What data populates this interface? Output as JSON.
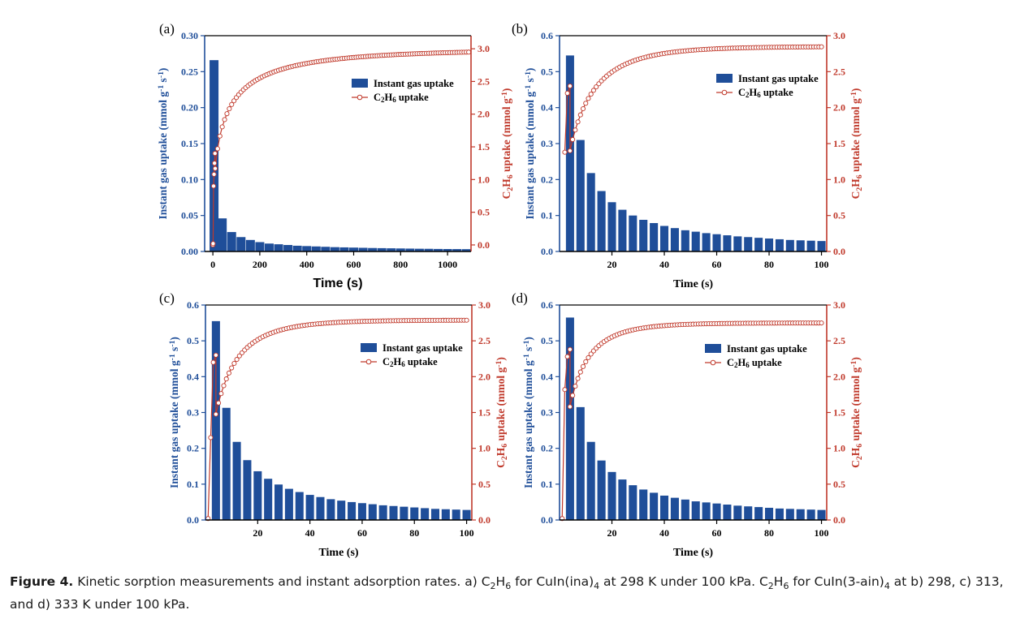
{
  "figure": {
    "caption_label": "Figure 4.",
    "caption_html": "Kinetic sorption measurements and instant adsorption rates. a) C<sub>2</sub>H<sub>6</sub> for CuIn(ina)<sub>4</sub> at 298 K under 100 kPa. C<sub>2</sub>H<sub>6</sub> for CuIn(3-ain)<sub>4</sub> at b) 298, c) 313, and d) 333 K under 100 kPa."
  },
  "colors": {
    "bar": "#1f4e99",
    "line": "#c0392b",
    "left_axis": "#1f4e99",
    "right_axis": "#c0392b"
  },
  "chart_data": [
    {
      "panel_label": "(a)",
      "type": "bar",
      "xlabel": "Time (s)",
      "ylabel_left": "Instant gas uptake (mmol g⁻¹ s⁻¹)",
      "ylabel_right": "C₂H₆ uptake (mmol g⁻¹)",
      "xlim": [
        -35,
        1100
      ],
      "xticks": [
        0,
        200,
        400,
        600,
        800,
        1000
      ],
      "ylim_left": [
        0,
        0.3
      ],
      "yticks_left": [
        "0.00",
        "0.05",
        "0.10",
        "0.15",
        "0.20",
        "0.25",
        "0.30"
      ],
      "ylim_right": [
        -0.1,
        3.2
      ],
      "yticks_right": [
        "0.0",
        "0.5",
        "1.0",
        "1.5",
        "2.0",
        "2.5",
        "3.0"
      ],
      "legend": [
        "Instant gas uptake",
        "C₂H₆ uptake"
      ],
      "legend_position": "top-right",
      "series": [
        {
          "name": "Instant gas uptake",
          "kind": "bar",
          "x": [
            5,
            40,
            80,
            120,
            160,
            200,
            240,
            280,
            320,
            360,
            400,
            440,
            480,
            520,
            560,
            600,
            640,
            680,
            720,
            760,
            800,
            840,
            880,
            920,
            960,
            1000,
            1040,
            1080
          ],
          "values": [
            0.266,
            0.046,
            0.027,
            0.02,
            0.016,
            0.013,
            0.011,
            0.01,
            0.009,
            0.008,
            0.0075,
            0.007,
            0.0065,
            0.006,
            0.0057,
            0.0054,
            0.0051,
            0.0048,
            0.0046,
            0.0044,
            0.0042,
            0.004,
            0.0038,
            0.0037,
            0.0035,
            0.0034,
            0.0033,
            0.0032
          ]
        },
        {
          "name": "C₂H₆ uptake",
          "kind": "line",
          "model": {
            "t_start": 0,
            "t_end": 1090,
            "step": 10,
            "y_max": 3.0,
            "tau": 48,
            "beta": 0.45
          },
          "start_points": [
            [
              1,
              0.02
            ],
            [
              3,
              0.9
            ],
            [
              5,
              1.08
            ],
            [
              7,
              1.25
            ],
            [
              9,
              1.4
            ]
          ]
        }
      ]
    },
    {
      "panel_label": "(b)",
      "type": "bar",
      "xlabel": "Time (s)",
      "ylabel_left": "Instant gas uptake (mmol g⁻¹ s⁻¹)",
      "ylabel_right": "C₂H₆ uptake (mmol g⁻¹)",
      "xlim": [
        0,
        102
      ],
      "xticks": [
        20,
        40,
        60,
        80,
        100
      ],
      "ylim_left": [
        0,
        0.6
      ],
      "yticks_left": [
        "0.0",
        "0.1",
        "0.2",
        "0.3",
        "0.4",
        "0.5",
        "0.6"
      ],
      "ylim_right": [
        0,
        3.0
      ],
      "yticks_right": [
        "0.0",
        "0.5",
        "1.0",
        "1.5",
        "2.0",
        "2.5",
        "3.0"
      ],
      "legend": [
        "Instant gas uptake",
        "C₂H₆ uptake"
      ],
      "legend_position": "top-right",
      "series": [
        {
          "name": "Instant gas uptake",
          "kind": "bar",
          "x": [
            4,
            8,
            12,
            16,
            20,
            24,
            28,
            32,
            36,
            40,
            44,
            48,
            52,
            56,
            60,
            64,
            68,
            72,
            76,
            80,
            84,
            88,
            92,
            96,
            100
          ],
          "values": [
            0.545,
            0.31,
            0.218,
            0.168,
            0.137,
            0.116,
            0.1,
            0.088,
            0.079,
            0.071,
            0.065,
            0.059,
            0.055,
            0.051,
            0.048,
            0.045,
            0.042,
            0.04,
            0.038,
            0.036,
            0.034,
            0.032,
            0.031,
            0.03,
            0.029
          ]
        },
        {
          "name": "C₂H₆ uptake",
          "kind": "line",
          "model": {
            "t_start": 4,
            "t_end": 100,
            "step": 1,
            "y_max": 2.85,
            "tau": 7,
            "beta": 0.7
          },
          "start_points": [
            [
              2,
              1.38
            ],
            [
              3,
              2.2
            ],
            [
              4,
              2.3
            ]
          ]
        }
      ]
    },
    {
      "panel_label": "(c)",
      "type": "bar",
      "xlabel": "Time (s)",
      "ylabel_left": "Instant gas uptake (mmol g⁻¹ s⁻¹)",
      "ylabel_right": "C₂H₆ uptake (mmol g⁻¹)",
      "xlim": [
        0,
        102
      ],
      "xticks": [
        20,
        40,
        60,
        80,
        100
      ],
      "ylim_left": [
        0,
        0.6
      ],
      "yticks_left": [
        "0.0",
        "0.1",
        "0.2",
        "0.3",
        "0.4",
        "0.5",
        "0.6"
      ],
      "ylim_right": [
        0,
        3.0
      ],
      "yticks_right": [
        "0.0",
        "0.5",
        "1.0",
        "1.5",
        "2.0",
        "2.5",
        "3.0"
      ],
      "legend": [
        "Instant gas uptake",
        "C₂H₆ uptake"
      ],
      "legend_position": "top-right",
      "series": [
        {
          "name": "Instant gas uptake",
          "kind": "bar",
          "x": [
            4,
            8,
            12,
            16,
            20,
            24,
            28,
            32,
            36,
            40,
            44,
            48,
            52,
            56,
            60,
            64,
            68,
            72,
            76,
            80,
            84,
            88,
            92,
            96,
            100
          ],
          "values": [
            0.555,
            0.313,
            0.218,
            0.167,
            0.136,
            0.115,
            0.099,
            0.087,
            0.078,
            0.07,
            0.064,
            0.058,
            0.054,
            0.05,
            0.047,
            0.044,
            0.041,
            0.039,
            0.037,
            0.035,
            0.033,
            0.031,
            0.03,
            0.029,
            0.028
          ]
        },
        {
          "name": "C₂H₆ uptake",
          "kind": "line",
          "model": {
            "t_start": 4,
            "t_end": 100,
            "step": 1,
            "y_max": 2.79,
            "tau": 6,
            "beta": 0.7
          },
          "start_points": [
            [
              1,
              0.02
            ],
            [
              2,
              1.15
            ],
            [
              3,
              2.2
            ],
            [
              4,
              2.3
            ]
          ]
        }
      ]
    },
    {
      "panel_label": "(d)",
      "type": "bar",
      "xlabel": "Time (s)",
      "ylabel_left": "Instant gas uptake (mmol g⁻¹ s⁻¹)",
      "ylabel_right": "C₂H₆ uptake (mmol g⁻¹)",
      "xlim": [
        0,
        102
      ],
      "xticks": [
        20,
        40,
        60,
        80,
        100
      ],
      "ylim_left": [
        0,
        0.6
      ],
      "yticks_left": [
        "0.0",
        "0.1",
        "0.2",
        "0.3",
        "0.4",
        "0.5",
        "0.6"
      ],
      "ylim_right": [
        0,
        3.0
      ],
      "yticks_right": [
        "0.0",
        "0.5",
        "1.0",
        "1.5",
        "2.0",
        "2.5",
        "3.0"
      ],
      "legend": [
        "Instant gas uptake",
        "C₂H₆ uptake"
      ],
      "legend_position": "top-right",
      "series": [
        {
          "name": "Instant gas uptake",
          "kind": "bar",
          "x": [
            4,
            8,
            12,
            16,
            20,
            24,
            28,
            32,
            36,
            40,
            44,
            48,
            52,
            56,
            60,
            64,
            68,
            72,
            76,
            80,
            84,
            88,
            92,
            96,
            100
          ],
          "values": [
            0.565,
            0.315,
            0.218,
            0.166,
            0.134,
            0.113,
            0.097,
            0.085,
            0.076,
            0.068,
            0.062,
            0.057,
            0.052,
            0.049,
            0.046,
            0.043,
            0.04,
            0.038,
            0.036,
            0.034,
            0.032,
            0.031,
            0.03,
            0.029,
            0.028
          ]
        },
        {
          "name": "C₂H₆ uptake",
          "kind": "line",
          "model": {
            "t_start": 4,
            "t_end": 100,
            "step": 1,
            "y_max": 2.75,
            "tau": 5,
            "beta": 0.7
          },
          "start_points": [
            [
              1,
              0.02
            ],
            [
              2,
              1.82
            ],
            [
              3,
              2.28
            ],
            [
              4,
              2.38
            ]
          ]
        }
      ]
    }
  ]
}
